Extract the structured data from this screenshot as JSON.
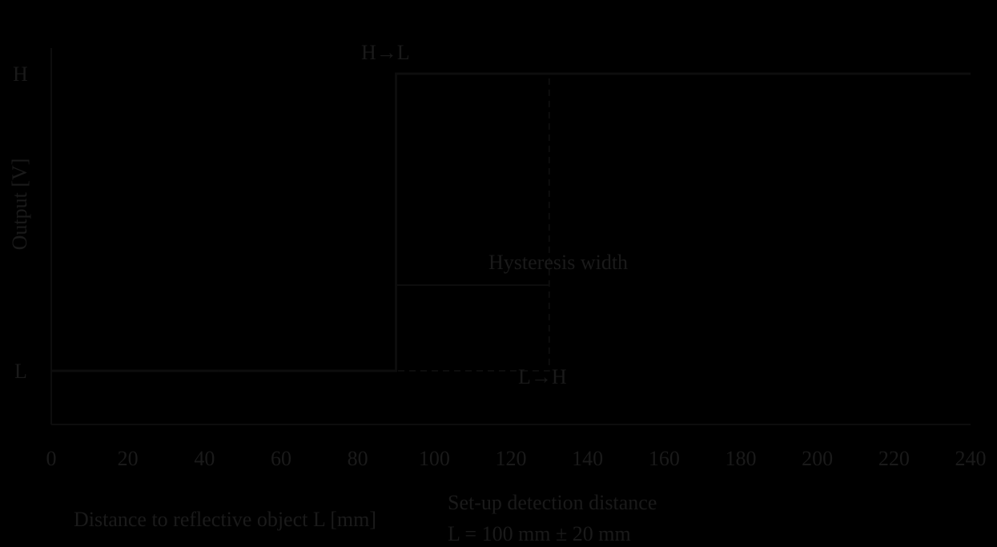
{
  "colors": {
    "background": "#000000",
    "text": "#1a1a1a",
    "line": "#0d0d0d"
  },
  "chart_data": {
    "type": "line",
    "title": "",
    "xlabel": "Distance to reflective object  L [mm]",
    "ylabel": "Output [V]",
    "xlim": [
      0,
      240
    ],
    "x_ticks": [
      0,
      20,
      40,
      60,
      80,
      100,
      120,
      140,
      160,
      180,
      200,
      220,
      240
    ],
    "y_levels": [
      "H",
      "L"
    ],
    "series": [
      {
        "direction": "approach",
        "x": [
          0,
          90,
          90,
          240
        ],
        "y": [
          "L",
          "L",
          "H",
          "H"
        ]
      },
      {
        "direction": "recede",
        "x": [
          240,
          130,
          130,
          0
        ],
        "y": [
          "H",
          "H",
          "L",
          "L"
        ]
      }
    ],
    "annotations": {
      "h_to_l": "H→L",
      "l_to_h": "L→H",
      "hysteresis": "Hysteresis width",
      "setup_line1": "Set-up detection distance",
      "setup_line2": "L = 100 mm ± 20 mm"
    }
  }
}
